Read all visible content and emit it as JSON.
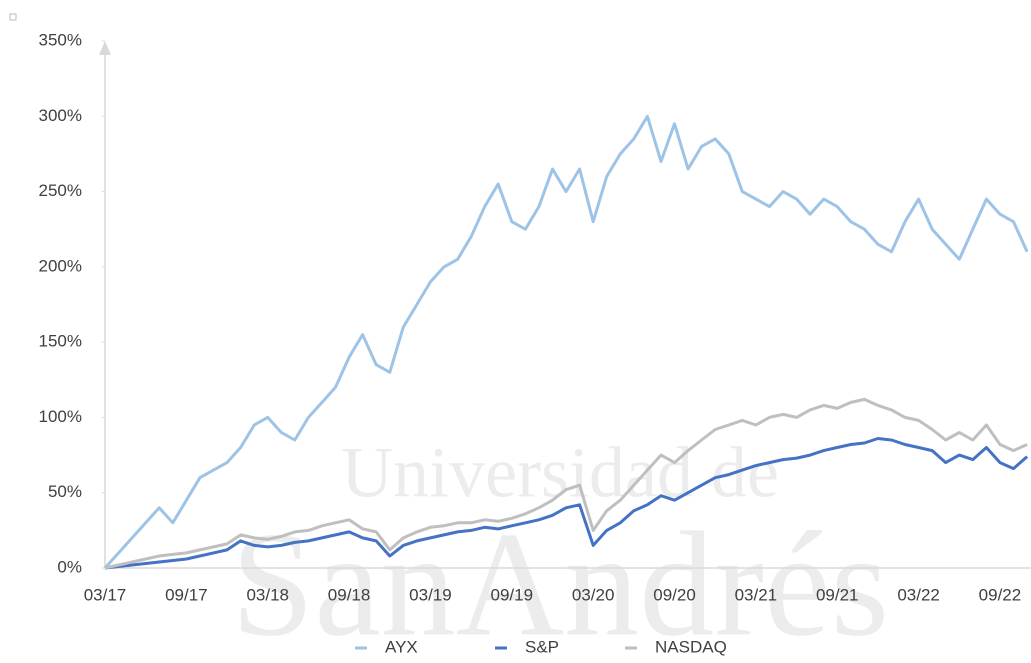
{
  "chart_data": {
    "type": "line",
    "watermark": [
      "Universidad de",
      "SanAndrés"
    ],
    "x": [
      "03/17",
      "04/17",
      "05/17",
      "06/17",
      "07/17",
      "08/17",
      "09/17",
      "10/17",
      "11/17",
      "12/17",
      "01/18",
      "02/18",
      "03/18",
      "04/18",
      "05/18",
      "06/18",
      "07/18",
      "08/18",
      "09/18",
      "10/18",
      "11/18",
      "12/18",
      "01/19",
      "02/19",
      "03/19",
      "04/19",
      "05/19",
      "06/19",
      "07/19",
      "08/19",
      "09/19",
      "10/19",
      "11/19",
      "12/19",
      "01/20",
      "02/20",
      "03/20",
      "04/20",
      "05/20",
      "06/20",
      "07/20",
      "08/20",
      "09/20",
      "10/20",
      "11/20",
      "12/20",
      "01/21",
      "02/21",
      "03/21",
      "04/21",
      "05/21",
      "06/21",
      "07/21",
      "08/21",
      "09/21",
      "10/21",
      "11/21",
      "12/21",
      "01/22",
      "02/22",
      "03/22",
      "04/22",
      "05/22",
      "06/22",
      "07/22",
      "08/22",
      "09/22",
      "10/22",
      "11/22"
    ],
    "xticks": [
      "03/17",
      "09/17",
      "03/18",
      "09/18",
      "03/19",
      "09/19",
      "03/20",
      "09/20",
      "03/21",
      "09/21",
      "03/22",
      "09/22"
    ],
    "series": [
      {
        "name": "AYX",
        "color": "#9dc3e6",
        "values": [
          0,
          10,
          20,
          30,
          40,
          30,
          45,
          60,
          65,
          70,
          80,
          95,
          100,
          90,
          85,
          100,
          110,
          120,
          140,
          155,
          135,
          130,
          160,
          175,
          190,
          200,
          205,
          220,
          240,
          255,
          230,
          225,
          240,
          265,
          250,
          265,
          230,
          260,
          275,
          285,
          300,
          270,
          295,
          265,
          280,
          285,
          275,
          250,
          245,
          240,
          250,
          245,
          235,
          245,
          240,
          230,
          225,
          215,
          210,
          230,
          245,
          225,
          215,
          205,
          225,
          245,
          235,
          230,
          210
        ]
      },
      {
        "name": "S&P",
        "color": "#4472c4",
        "values": [
          0,
          1,
          2,
          3,
          4,
          5,
          6,
          8,
          10,
          12,
          18,
          15,
          14,
          15,
          17,
          18,
          20,
          22,
          24,
          20,
          18,
          8,
          15,
          18,
          20,
          22,
          24,
          25,
          27,
          26,
          28,
          30,
          32,
          35,
          40,
          42,
          15,
          25,
          30,
          38,
          42,
          48,
          45,
          50,
          55,
          60,
          62,
          65,
          68,
          70,
          72,
          73,
          75,
          78,
          80,
          82,
          83,
          86,
          85,
          82,
          80,
          78,
          70,
          75,
          72,
          80,
          70,
          66,
          74
        ]
      },
      {
        "name": "NASDAQ",
        "color": "#bfbfbf",
        "values": [
          0,
          2,
          4,
          6,
          8,
          9,
          10,
          12,
          14,
          16,
          22,
          20,
          19,
          21,
          24,
          25,
          28,
          30,
          32,
          26,
          24,
          12,
          20,
          24,
          27,
          28,
          30,
          30,
          32,
          31,
          33,
          36,
          40,
          45,
          52,
          55,
          25,
          38,
          45,
          55,
          65,
          75,
          70,
          78,
          85,
          92,
          95,
          98,
          95,
          100,
          102,
          100,
          105,
          108,
          106,
          110,
          112,
          108,
          105,
          100,
          98,
          92,
          85,
          90,
          85,
          95,
          82,
          78,
          82
        ]
      }
    ],
    "ylim": [
      0,
      350
    ],
    "yticks": [
      {
        "value": 0,
        "label": "0%"
      },
      {
        "value": 50,
        "label": "50%"
      },
      {
        "value": 100,
        "label": "100%"
      },
      {
        "value": 150,
        "label": "150%"
      },
      {
        "value": 200,
        "label": "200%"
      },
      {
        "value": 250,
        "label": "250%"
      },
      {
        "value": 300,
        "label": "300%"
      },
      {
        "value": 350,
        "label": "350%"
      }
    ],
    "legend": "bottom"
  }
}
